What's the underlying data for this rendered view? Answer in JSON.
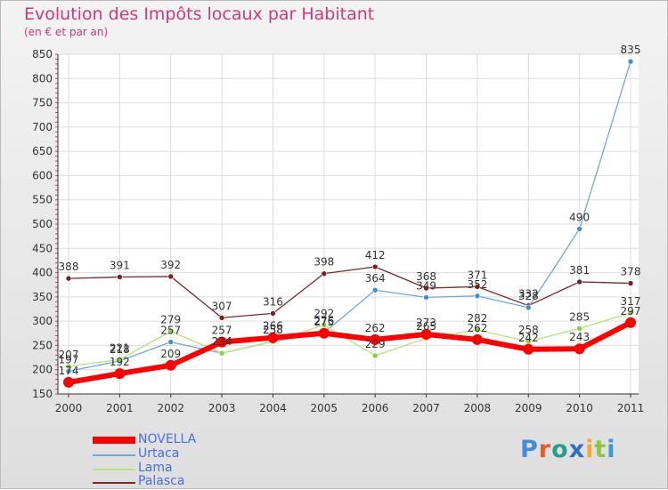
{
  "chart_data": {
    "type": "line",
    "title": "Evolution des Impôts locaux par Habitant",
    "subtitle": "(en € et par an)",
    "xlabel": "",
    "ylabel": "",
    "x": [
      "2000",
      "2001",
      "2002",
      "2003",
      "2004",
      "2005",
      "2006",
      "2007",
      "2008",
      "2009",
      "2010",
      "2011"
    ],
    "ylim": [
      150,
      850
    ],
    "yticks": [
      150,
      200,
      250,
      300,
      350,
      400,
      450,
      500,
      550,
      600,
      650,
      700,
      750,
      800,
      850
    ],
    "grid": true,
    "legend_position": "bottom-left",
    "series": [
      {
        "name": "NOVELLA",
        "color": "#ff0000",
        "values": [
          174,
          192,
          209,
          257,
          266,
          275,
          262,
          273,
          262,
          242,
          243,
          297
        ]
      },
      {
        "name": "Urtaca",
        "color": "#6fa8dc",
        "values": [
          197,
          218,
          257,
          234,
          258,
          276,
          364,
          349,
          352,
          328,
          490,
          835
        ]
      },
      {
        "name": "Lama",
        "color": "#b6e37a",
        "values": [
          207,
          221,
          279,
          234,
          258,
          292,
          229,
          265,
          282,
          258,
          285,
          317
        ]
      },
      {
        "name": "Palasca",
        "color": "#7a2a2a",
        "values": [
          388,
          391,
          392,
          307,
          316,
          398,
          412,
          368,
          371,
          332,
          381,
          378
        ]
      }
    ]
  }
}
